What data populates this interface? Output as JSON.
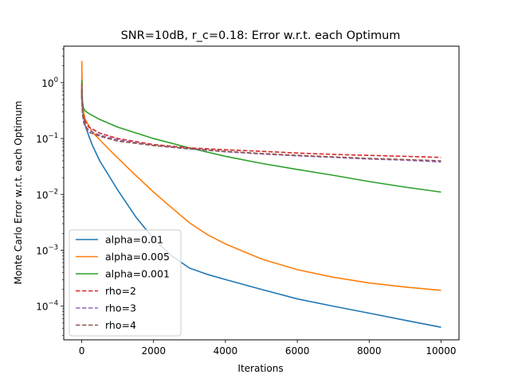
{
  "chart_data": {
    "type": "line",
    "title": "SNR=10dB, r_c=0.18: Error w.r.t. each Optimum",
    "xlabel": "Iterations",
    "ylabel": "Monte Carlo Error w.r.t. each Optimum",
    "xlim": [
      -500,
      10500
    ],
    "ylim": [
      2.5e-05,
      4.5
    ],
    "yscale": "log",
    "grid": false,
    "legend_position": "lower-left",
    "x_ticks": [
      0,
      2000,
      4000,
      6000,
      8000,
      10000
    ],
    "x_tick_labels": [
      "0",
      "2000",
      "4000",
      "6000",
      "8000",
      "10000"
    ],
    "y_ticks": [
      0.0001,
      0.001,
      0.01,
      0.1,
      1
    ],
    "y_tick_labels": [
      {
        "base": "10",
        "exp": "−4"
      },
      {
        "base": "10",
        "exp": "−3"
      },
      {
        "base": "10",
        "exp": "−2"
      },
      {
        "base": "10",
        "exp": "−1"
      },
      {
        "base": "10",
        "exp": "0"
      }
    ],
    "series": [
      {
        "name": "alpha=0.01",
        "color": "#1f77b4",
        "style": "solid",
        "x": [
          0,
          5,
          10,
          20,
          50,
          100,
          200,
          300,
          500,
          750,
          1000,
          1500,
          2000,
          2500,
          3000,
          3500,
          4000,
          5000,
          6000,
          7000,
          8000,
          9000,
          10000
        ],
        "y": [
          0.5,
          1.0,
          0.5,
          0.35,
          0.25,
          0.17,
          0.11,
          0.075,
          0.04,
          0.022,
          0.012,
          0.004,
          0.0016,
          0.0008,
          0.00048,
          0.00037,
          0.0003,
          0.0002,
          0.000135,
          0.0001,
          7.5e-05,
          5.6e-05,
          4.2e-05
        ]
      },
      {
        "name": "alpha=0.005",
        "color": "#ff7f0e",
        "style": "solid",
        "x": [
          0,
          5,
          10,
          20,
          50,
          100,
          200,
          300,
          500,
          750,
          1000,
          1500,
          2000,
          2500,
          3000,
          3500,
          4000,
          5000,
          6000,
          7000,
          8000,
          9000,
          10000
        ],
        "y": [
          0.6,
          2.4,
          1.0,
          0.5,
          0.3,
          0.22,
          0.17,
          0.13,
          0.095,
          0.065,
          0.045,
          0.022,
          0.011,
          0.0058,
          0.0031,
          0.0019,
          0.0013,
          0.0007,
          0.00045,
          0.00033,
          0.00026,
          0.00022,
          0.000192
        ]
      },
      {
        "name": "alpha=0.001",
        "color": "#2ca02c",
        "style": "solid",
        "x": [
          0,
          5,
          10,
          20,
          50,
          100,
          200,
          500,
          1000,
          2000,
          3000,
          4000,
          5000,
          6000,
          7000,
          8000,
          9000,
          10000
        ],
        "y": [
          0.6,
          1.1,
          0.6,
          0.45,
          0.35,
          0.31,
          0.28,
          0.22,
          0.16,
          0.1,
          0.068,
          0.048,
          0.036,
          0.028,
          0.022,
          0.017,
          0.0135,
          0.011
        ]
      },
      {
        "name": "rho=2",
        "color": "#d62728",
        "style": "dashed",
        "x": [
          0,
          5,
          10,
          20,
          50,
          100,
          200,
          500,
          1000,
          2000,
          3000,
          4000,
          5000,
          6000,
          7000,
          8000,
          9000,
          10000
        ],
        "y": [
          0.6,
          0.9,
          0.5,
          0.35,
          0.25,
          0.2,
          0.16,
          0.125,
          0.1,
          0.078,
          0.068,
          0.063,
          0.059,
          0.055,
          0.052,
          0.05,
          0.048,
          0.046
        ]
      },
      {
        "name": "rho=3",
        "color": "#9467bd",
        "style": "dashed",
        "x": [
          0,
          5,
          10,
          20,
          50,
          100,
          200,
          500,
          1000,
          2000,
          3000,
          4000,
          5000,
          6000,
          7000,
          8000,
          9000,
          10000
        ],
        "y": [
          0.55,
          0.85,
          0.45,
          0.3,
          0.22,
          0.17,
          0.14,
          0.115,
          0.095,
          0.075,
          0.065,
          0.058,
          0.053,
          0.049,
          0.046,
          0.043,
          0.041,
          0.038
        ]
      },
      {
        "name": "rho=4",
        "color": "#8c564b",
        "style": "dashed",
        "x": [
          0,
          5,
          10,
          20,
          50,
          100,
          200,
          500,
          1000,
          2000,
          3000,
          4000,
          5000,
          6000,
          7000,
          8000,
          9000,
          10000
        ],
        "y": [
          0.5,
          0.8,
          0.42,
          0.28,
          0.2,
          0.16,
          0.13,
          0.11,
          0.09,
          0.075,
          0.066,
          0.059,
          0.054,
          0.05,
          0.047,
          0.044,
          0.042,
          0.04
        ]
      }
    ]
  }
}
